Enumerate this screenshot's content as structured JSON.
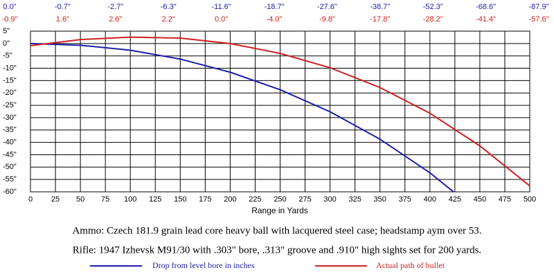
{
  "chart_data": {
    "type": "line",
    "xlabel": "Range in Yards",
    "annotations": [
      "Ammo:  Czech 181.9 grain lead core heavy ball with lacquered steel case; headstamp aym over 53.",
      "Rifle:  1947 Izhevsk M91/30 with .303\" bore, .313\" groove and .910\" high sights set for 200 yards."
    ],
    "x": [
      0,
      50,
      100,
      150,
      200,
      250,
      300,
      350,
      400,
      450,
      500
    ],
    "xlim": [
      0,
      500
    ],
    "xticks": [
      0,
      25,
      50,
      75,
      100,
      125,
      150,
      175,
      200,
      225,
      250,
      275,
      300,
      325,
      350,
      375,
      400,
      425,
      450,
      475,
      500
    ],
    "ylim": [
      -60,
      5
    ],
    "yticks": [
      {
        "value": 5,
        "label": "5\""
      },
      {
        "value": 0,
        "label": "0\""
      },
      {
        "value": -5,
        "label": "-5\""
      },
      {
        "value": -10,
        "label": "-10\""
      },
      {
        "value": -15,
        "label": "-15\""
      },
      {
        "value": -20,
        "label": "-20\""
      },
      {
        "value": -25,
        "label": "-25\""
      },
      {
        "value": -30,
        "label": "-30\""
      },
      {
        "value": -35,
        "label": "-35\""
      },
      {
        "value": -40,
        "label": "-40\""
      },
      {
        "value": -45,
        "label": "-45\""
      },
      {
        "value": -50,
        "label": "-50\""
      },
      {
        "value": -55,
        "label": "-55\""
      },
      {
        "value": -60,
        "label": "-60\""
      }
    ],
    "grid": true,
    "series": [
      {
        "name": "Drop from level bore in inches",
        "color": "#1c1ca8",
        "values": [
          0.0,
          -0.7,
          -2.7,
          -6.3,
          -11.6,
          -18.7,
          -27.6,
          -38.7,
          -52.3,
          -68.6,
          -87.9
        ],
        "value_labels": [
          "0.0\"",
          "-0.7\"",
          "-2.7\"",
          "-6.3\"",
          "-11.6\"",
          "-18.7\"",
          "-27.6\"",
          "-38.7\"",
          "-52.3\"",
          "-68.6\"",
          "-87.9\""
        ]
      },
      {
        "name": "Actual path of bullet",
        "color": "#cc2020",
        "values": [
          -0.9,
          1.6,
          2.6,
          2.2,
          0.0,
          -4.0,
          -9.8,
          -17.8,
          -28.2,
          -41.4,
          -57.6
        ],
        "value_labels": [
          "-0.9\"",
          "1.6\"",
          "2.6\"",
          "2.2\"",
          "0.0\"",
          "-4.0\"",
          "-9.8\"",
          "-17.8\"",
          "-28.2\"",
          "-41.4\"",
          "-57.6\""
        ]
      }
    ]
  }
}
